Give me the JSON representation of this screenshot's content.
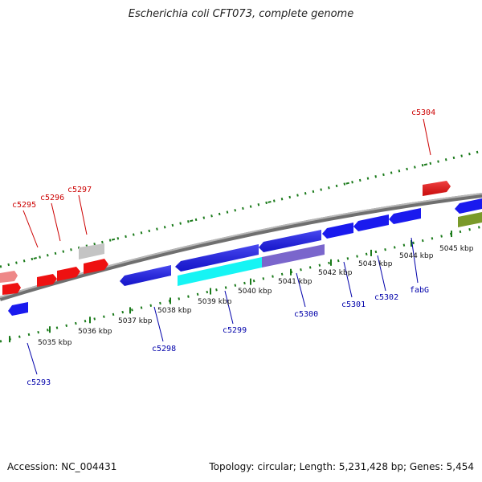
{
  "title": "Escherichia coli CFT073, complete genome",
  "accession": "Accession: NC_004431",
  "topology": "Topology: circular; Length: 5,231,428 bp; Genes: 5,454",
  "colors": {
    "backbone": "#8c8c8c",
    "tick": "#1a7a1a",
    "forward_gene": "#ee1111",
    "forward_gene_faded": "#ee8888",
    "reverse_gene": "#1a1aee",
    "label_forward": "#cc0000",
    "label_reverse": "#0000aa",
    "grey_feature": "#c4c4c4",
    "cyan_feature": "#16f4f4",
    "purple_feature": "#7a66cc",
    "olive_feature": "#7a9a2a"
  },
  "scale_labels": [
    "5035 kbp",
    "5036 kbp",
    "5037 kbp",
    "5038 kbp",
    "5039 kbp",
    "5040 kbp",
    "5041 kbp",
    "5042 kbp",
    "5043 kbp",
    "5044 kbp",
    "5045 kbp"
  ],
  "gene_labels_top": [
    "c5295",
    "c5296",
    "c5297",
    "c5304"
  ],
  "gene_labels_bottom": [
    "c5293",
    "c5298",
    "c5299",
    "c5300",
    "c5301",
    "c5302",
    "fabG"
  ]
}
